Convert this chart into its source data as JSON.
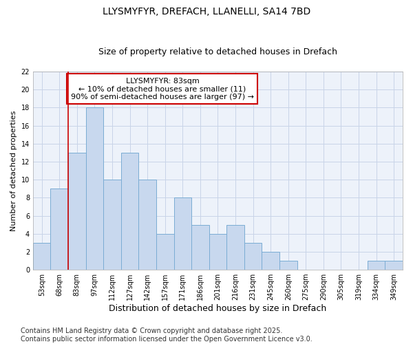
{
  "title1": "LLYSMYFYR, DREFACH, LLANELLI, SA14 7BD",
  "title2": "Size of property relative to detached houses in Drefach",
  "xlabel": "Distribution of detached houses by size in Drefach",
  "ylabel": "Number of detached properties",
  "categories": [
    "53sqm",
    "68sqm",
    "83sqm",
    "97sqm",
    "112sqm",
    "127sqm",
    "142sqm",
    "157sqm",
    "171sqm",
    "186sqm",
    "201sqm",
    "216sqm",
    "231sqm",
    "245sqm",
    "260sqm",
    "275sqm",
    "290sqm",
    "305sqm",
    "319sqm",
    "334sqm",
    "349sqm"
  ],
  "values": [
    3,
    9,
    13,
    18,
    10,
    13,
    10,
    4,
    8,
    5,
    4,
    5,
    3,
    2,
    1,
    0,
    0,
    0,
    0,
    1,
    1
  ],
  "bar_color": "#c8d8ee",
  "bar_edge_color": "#7aacd4",
  "grid_color": "#c8d4e8",
  "background_color": "#edf2fa",
  "vline_x_index": 2,
  "vline_color": "#cc0000",
  "annotation_line1": "LLYSMYFYR: 83sqm",
  "annotation_line2": "← 10% of detached houses are smaller (11)",
  "annotation_line3": "90% of semi-detached houses are larger (97) →",
  "ylim": [
    0,
    22
  ],
  "yticks": [
    0,
    2,
    4,
    6,
    8,
    10,
    12,
    14,
    16,
    18,
    20,
    22
  ],
  "footer": "Contains HM Land Registry data © Crown copyright and database right 2025.\nContains public sector information licensed under the Open Government Licence v3.0.",
  "title_fontsize": 10,
  "subtitle_fontsize": 9,
  "xlabel_fontsize": 9,
  "ylabel_fontsize": 8,
  "tick_fontsize": 7,
  "annotation_fontsize": 8,
  "footer_fontsize": 7
}
